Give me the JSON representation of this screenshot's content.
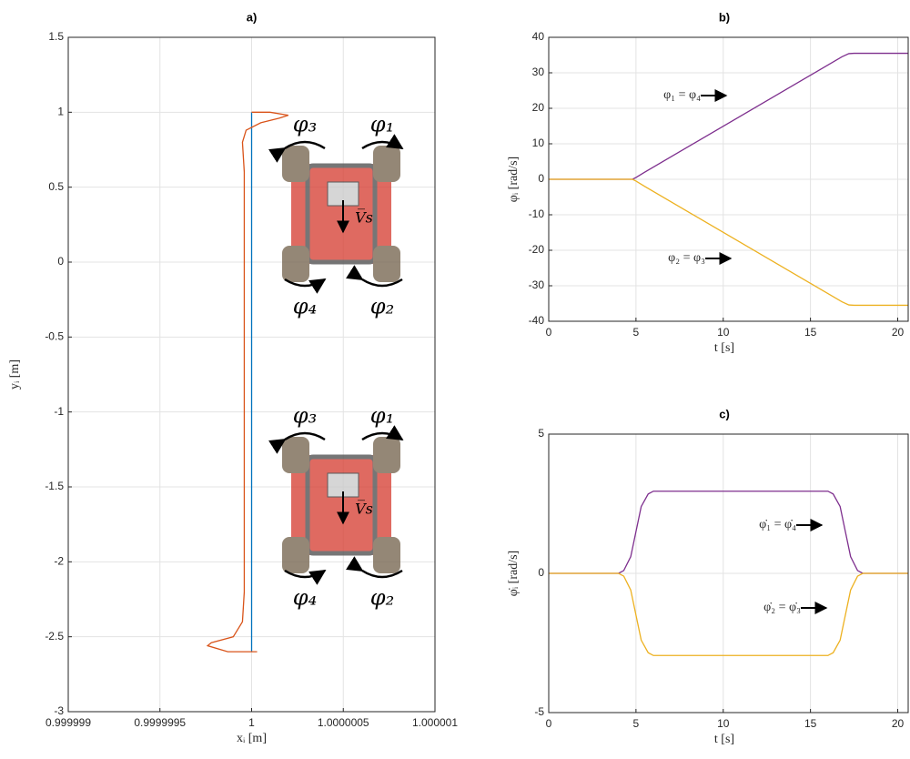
{
  "chart_data": [
    {
      "type": "line",
      "title": "a)",
      "x_label": "xᵢ [m]",
      "y_label": "yᵢ [m]",
      "xlim": [
        0.999999,
        1.000001
      ],
      "xticks": [
        0.999999,
        0.9999995,
        1,
        1.0000005,
        1.000001
      ],
      "ylim": [
        -3,
        1.5
      ],
      "yticks": [
        -3,
        -2.5,
        -2,
        -1.5,
        -1,
        -0.5,
        0,
        0.5,
        1,
        1.5
      ],
      "grid": true,
      "series": [
        {
          "color": "#0072BD",
          "x": [
            1,
            1
          ],
          "values": [
            -2.6,
            1
          ]
        },
        {
          "color": "#D95319",
          "x": [
            1.00000003,
            0.99999987,
            0.99999976,
            0.99999978,
            0.9999999,
            0.99999995,
            0.99999996,
            0.99999996,
            0.99999996,
            0.99999995,
            0.99999997,
            1.00000005,
            1.00000015,
            1.0000002,
            1.0000001,
            1
          ],
          "values": [
            -2.6,
            -2.6,
            -2.56,
            -2.54,
            -2.5,
            -2.4,
            -2.2,
            0,
            0.6,
            0.8,
            0.88,
            0.93,
            0.96,
            0.98,
            1,
            1
          ]
        }
      ],
      "annotations": [
        "φ₃",
        "φ₁",
        "φ₄",
        "φ₂",
        "V̅s",
        "φ₃",
        "φ₁",
        "φ₄",
        "φ₂",
        "V̅s"
      ]
    },
    {
      "type": "line",
      "title": "b)",
      "x_label": "t [s]",
      "y_label": "φᵢ [rad/s]",
      "xlim": [
        0,
        20.6
      ],
      "xticks": [
        0,
        5,
        10,
        15,
        20
      ],
      "ylim": [
        -40,
        40
      ],
      "yticks": [
        -40,
        -30,
        -20,
        -10,
        0,
        10,
        20,
        30,
        40
      ],
      "grid": true,
      "x": [
        0,
        4.8,
        5,
        5.5,
        16.8,
        17.2,
        17.5,
        20.6
      ],
      "series": [
        {
          "name": "φ₁ = φ₄",
          "color": "#7E2F8E",
          "values": [
            0,
            0,
            0.5,
            2,
            34.5,
            35.4,
            35.5,
            35.5
          ]
        },
        {
          "name": "φ₂ = φ₃",
          "color": "#EDB120",
          "values": [
            0,
            0,
            -0.5,
            -2,
            -34.5,
            -35.4,
            -35.5,
            -35.5
          ]
        }
      ]
    },
    {
      "type": "line",
      "title": "c)",
      "x_label": "t [s]",
      "y_label": "φ̇ᵢ [rad/s]",
      "xlim": [
        0,
        20.6
      ],
      "xticks": [
        0,
        5,
        10,
        15,
        20
      ],
      "ylim": [
        -5,
        5
      ],
      "yticks": [
        -5,
        0,
        5
      ],
      "grid": true,
      "x": [
        0,
        4,
        4.3,
        4.7,
        5,
        5.3,
        5.7,
        6,
        16,
        16.3,
        16.7,
        17,
        17.3,
        17.7,
        18,
        20.6
      ],
      "series": [
        {
          "name": "φ̇₁ = φ̇₄",
          "color": "#7E2F8E",
          "values": [
            0,
            0,
            0.1,
            0.6,
            1.5,
            2.4,
            2.85,
            2.95,
            2.95,
            2.85,
            2.4,
            1.5,
            0.6,
            0.1,
            0,
            0
          ]
        },
        {
          "name": "φ̇₂ = φ̇₃",
          "color": "#EDB120",
          "values": [
            0,
            0,
            -0.1,
            -0.6,
            -1.5,
            -2.4,
            -2.85,
            -2.95,
            -2.95,
            -2.85,
            -2.4,
            -1.5,
            -0.6,
            -0.1,
            0,
            0
          ]
        }
      ]
    }
  ]
}
